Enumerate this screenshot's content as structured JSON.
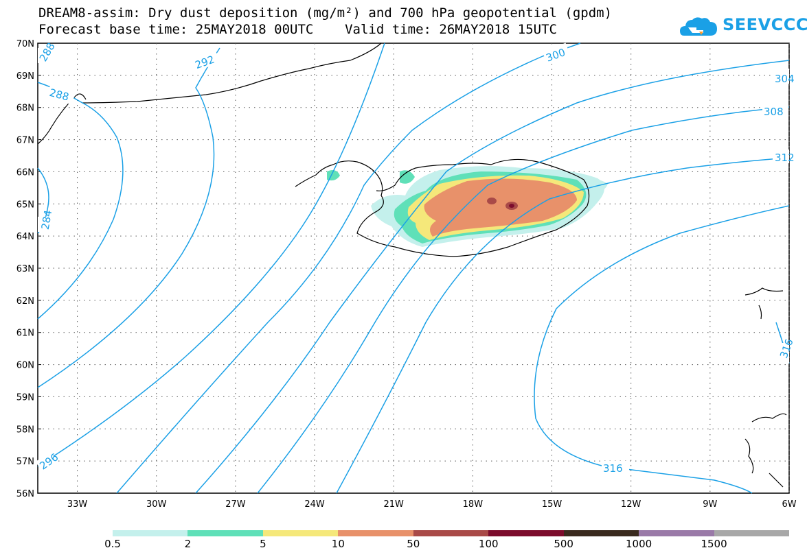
{
  "title": {
    "line1": "DREAM8-assim: Dry dust deposition (mg/m²) and 700 hPa geopotential (gpdm)",
    "line2": "Forecast base time: 25MAY2018 00UTC    Valid time: 26MAY2018 15UTC"
  },
  "logo": {
    "text": "SEEVCCC",
    "icon": "cloud-logo-icon",
    "color": "#1aa0e6"
  },
  "map": {
    "lat_labels": [
      "70N",
      "69N",
      "68N",
      "67N",
      "66N",
      "65N",
      "64N",
      "63N",
      "62N",
      "61N",
      "60N",
      "59N",
      "58N",
      "57N",
      "56N"
    ],
    "lon_labels": [
      "33W",
      "30W",
      "27W",
      "24W",
      "21W",
      "18W",
      "15W",
      "12W",
      "9W",
      "6W"
    ],
    "lat_range": [
      56,
      70
    ],
    "lon_range": [
      -34.5,
      -6
    ],
    "grid": "dotted",
    "contour_color": "#1aa0e6",
    "contour_labels": [
      "288",
      "292",
      "296",
      "300",
      "304",
      "308",
      "312",
      "316",
      "288",
      "284",
      "296",
      "312",
      "316"
    ]
  },
  "legend": {
    "colors": [
      "#c4f0ec",
      "#5fe0b8",
      "#f5e87a",
      "#e8916a",
      "#a94a48",
      "#7c0c2c",
      "#3a2a1e",
      "#9a7aa8",
      "#a8a8a8"
    ],
    "labels": [
      "0.5",
      "2",
      "5",
      "10",
      "50",
      "100",
      "500",
      "1000",
      "1500"
    ]
  }
}
